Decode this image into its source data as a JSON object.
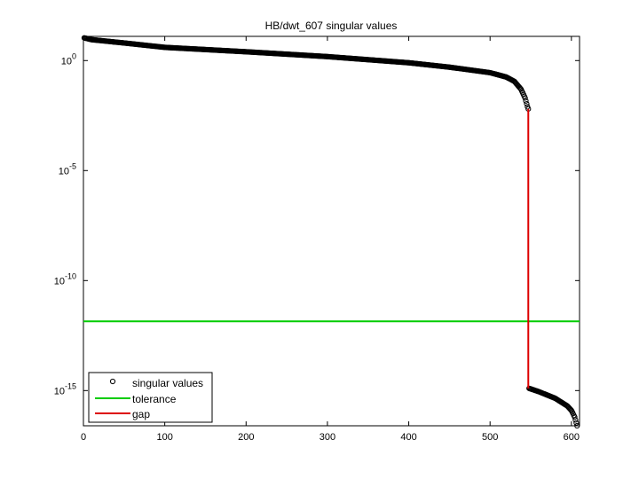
{
  "chart_data": {
    "type": "scatter",
    "title": "HB/dwt_607 singular values",
    "xlabel": "",
    "ylabel": "",
    "xlim": [
      0,
      610
    ],
    "ylim_log10": [
      -16.6,
      1.1
    ],
    "yscale": "log",
    "grid": false,
    "legend_position": "bottom-left",
    "xticks": [
      0,
      100,
      200,
      300,
      400,
      500,
      600
    ],
    "yticks": [
      {
        "base": "10",
        "exp": "0",
        "value_log10": 0
      },
      {
        "base": "10",
        "exp": "-5",
        "value_log10": -5
      },
      {
        "base": "10",
        "exp": "-10",
        "value_log10": -10
      },
      {
        "base": "10",
        "exp": "-15",
        "value_log10": -15
      }
    ],
    "series": [
      {
        "name": "singular values",
        "marker": "circle",
        "color": "#000000",
        "n_points": 607,
        "log10_profile": [
          [
            1,
            1.03
          ],
          [
            10,
            0.95
          ],
          [
            50,
            0.8
          ],
          [
            100,
            0.6
          ],
          [
            200,
            0.4
          ],
          [
            300,
            0.18
          ],
          [
            400,
            -0.1
          ],
          [
            450,
            -0.3
          ],
          [
            500,
            -0.55
          ],
          [
            520,
            -0.75
          ],
          [
            530,
            -0.95
          ],
          [
            538,
            -1.3
          ],
          [
            543,
            -1.7
          ],
          [
            546,
            -2.1
          ],
          [
            547,
            -2.2
          ],
          [
            548,
            -14.9
          ],
          [
            560,
            -15.05
          ],
          [
            580,
            -15.35
          ],
          [
            595,
            -15.7
          ],
          [
            600,
            -15.9
          ],
          [
            604,
            -16.2
          ],
          [
            607,
            -16.6
          ]
        ]
      },
      {
        "name": "tolerance",
        "color": "#00cc00",
        "log10_value": -11.85
      },
      {
        "name": "gap",
        "color": "#dd0000",
        "x": 547,
        "log10_range": [
          -14.9,
          -2.2
        ]
      }
    ]
  }
}
